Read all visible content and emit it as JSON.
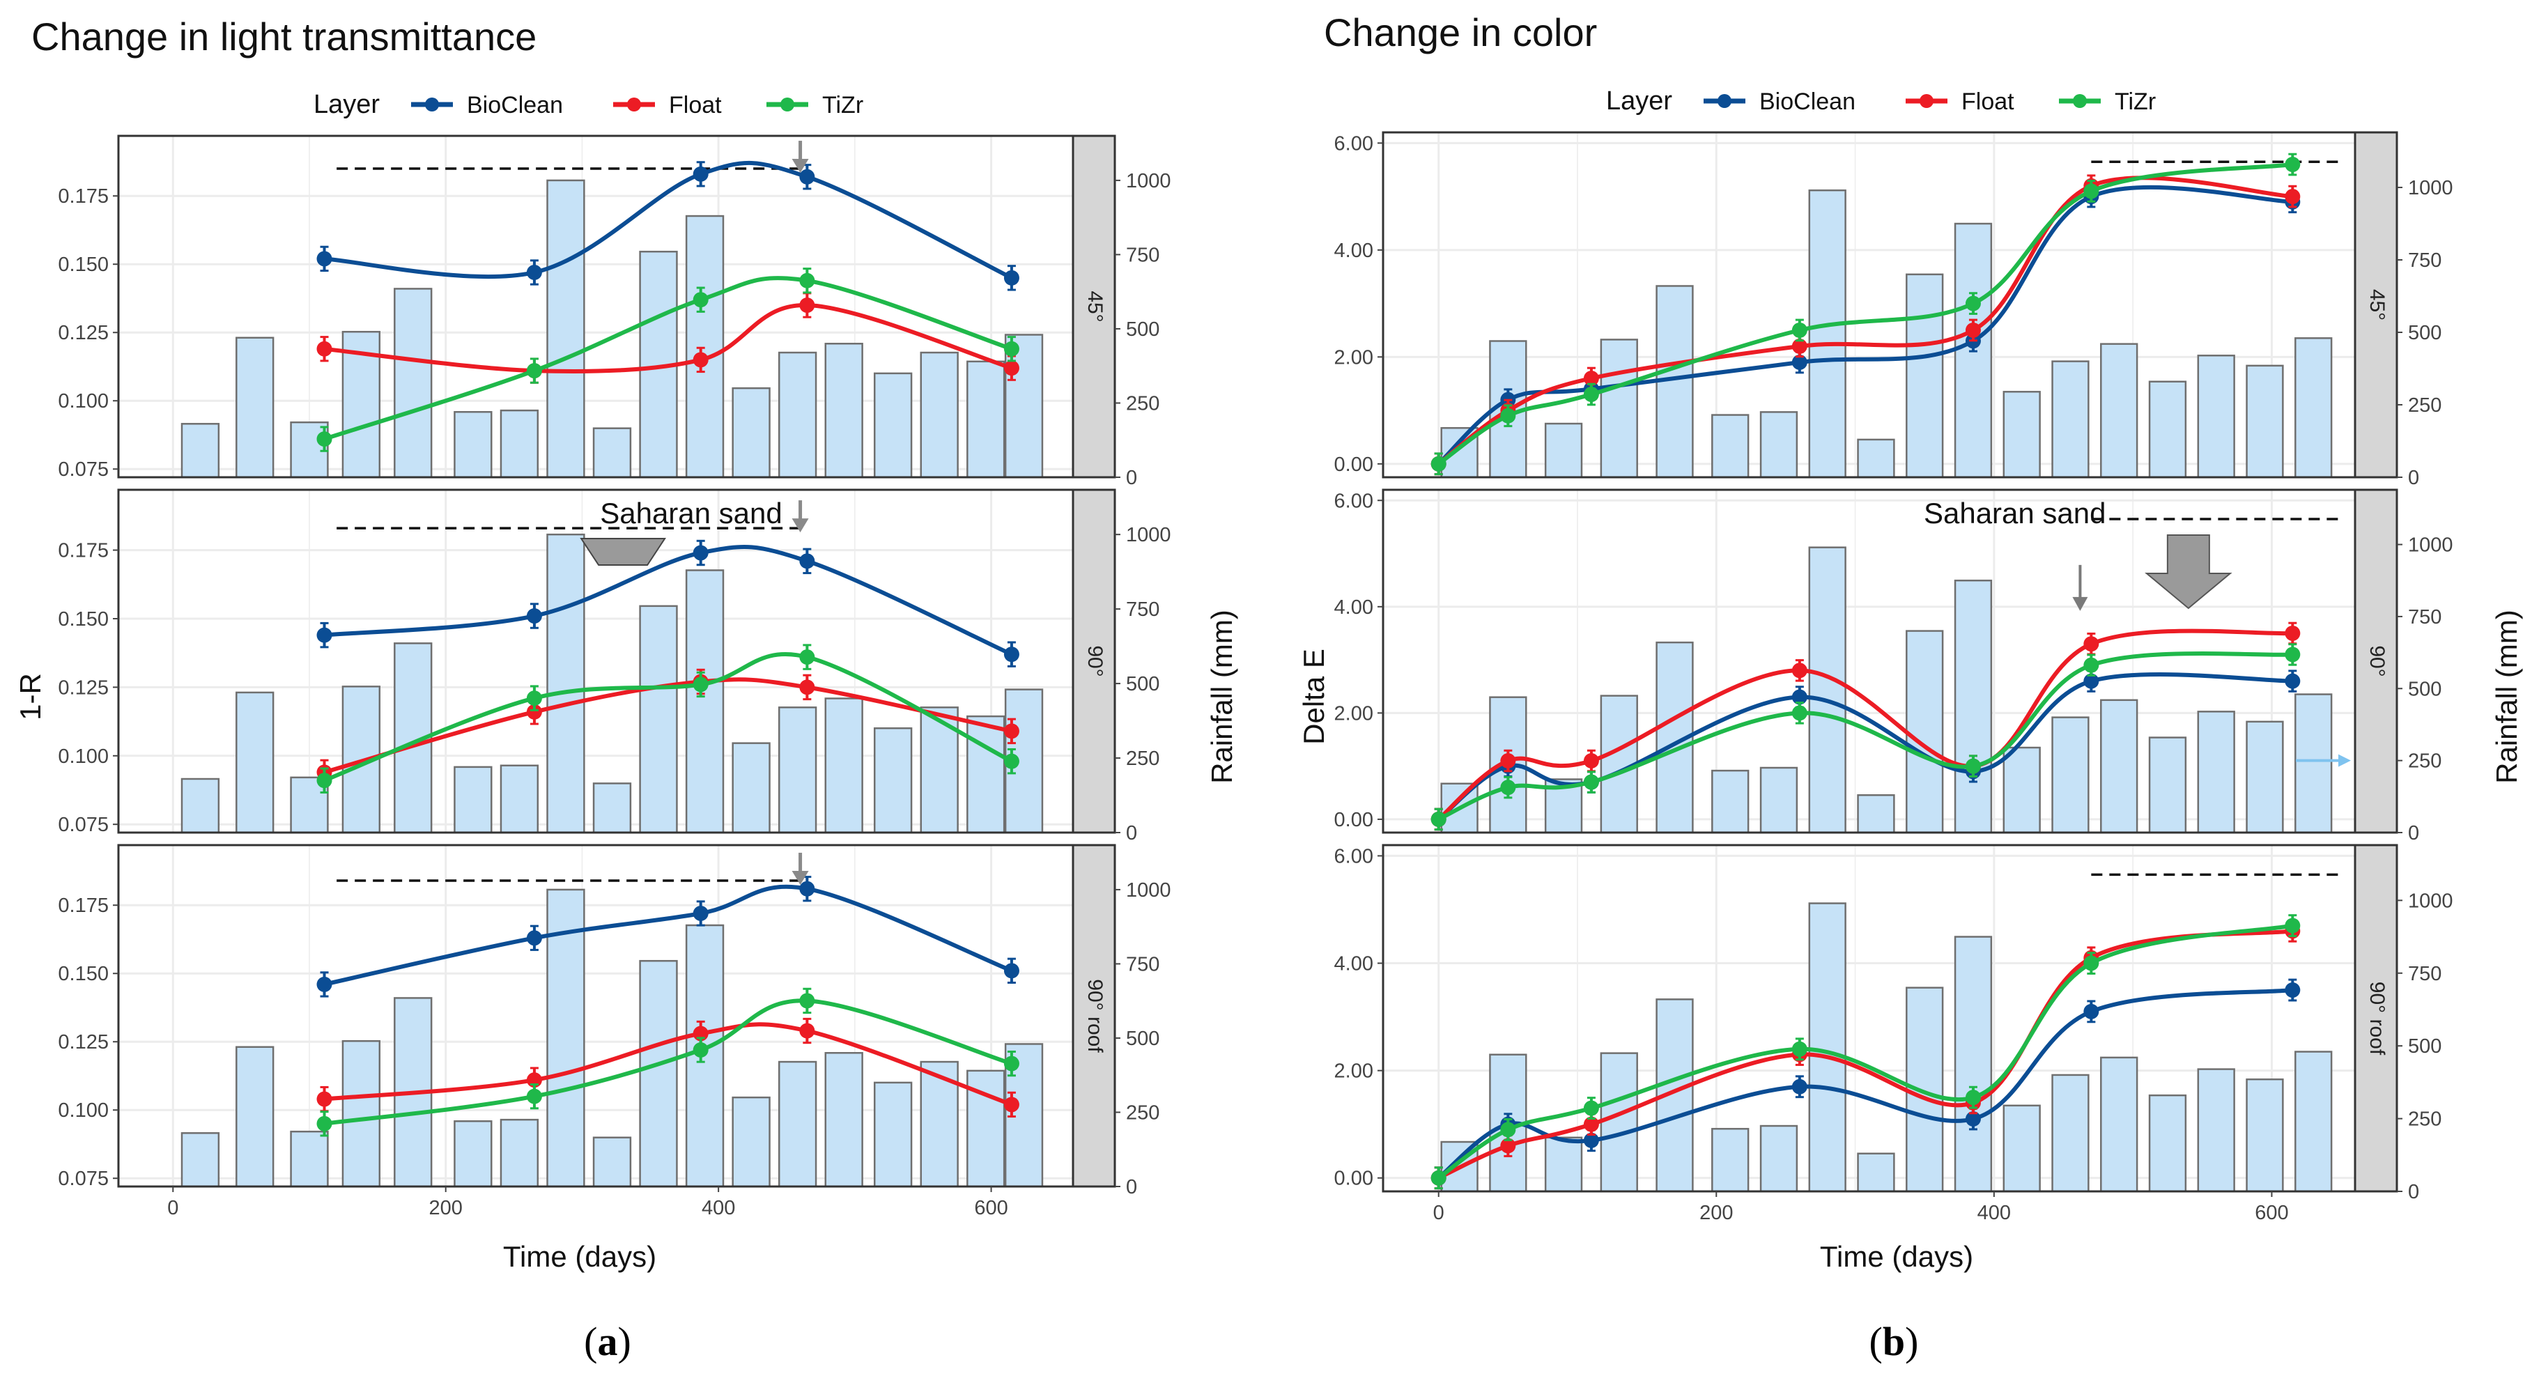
{
  "colors": {
    "BioClean": "#0b4d94",
    "Float": "#ec1c24",
    "TiZr": "#1fb84a",
    "bar_fill": "#c6e2f7",
    "bar_stroke": "#6f6f6f",
    "strip": "#d6d6d6",
    "grid": "#ececec"
  },
  "legend": {
    "title": "Layer",
    "items": [
      {
        "key": "BioClean",
        "label": "BioClean"
      },
      {
        "key": "Float",
        "label": "Float"
      },
      {
        "key": "TiZr",
        "label": "TiZr"
      }
    ]
  },
  "subfigure_labels": {
    "a": {
      "open": "(",
      "letter": "a",
      "close": ")"
    },
    "b": {
      "open": "(",
      "letter": "b",
      "close": ")"
    }
  },
  "annotations": {
    "saharan_sand": "Saharan sand",
    "arrow_icon": "down-arrow-icon"
  },
  "chart_data": [
    {
      "id": "a",
      "type": "line",
      "title": "Change in light transmittance",
      "xlabel": "Time (days)",
      "ylabel": "1-R",
      "y2label": "Rainfall (mm)",
      "xlim": [
        -40,
        660
      ],
      "xticks": [
        0,
        200,
        400,
        600
      ],
      "ylim": [
        0.072,
        0.197
      ],
      "yticks": [
        0.075,
        0.1,
        0.125,
        0.15,
        0.175
      ],
      "ytick_labels": [
        "0.075",
        "0.100",
        "0.125",
        "0.150",
        "0.175"
      ],
      "y2lim": [
        0,
        1150
      ],
      "y2ticks": [
        0,
        250,
        500,
        750,
        1000
      ],
      "y2tick_labels": [
        "0",
        "250",
        "500",
        "750",
        "1000"
      ],
      "rain_days": [
        20,
        60,
        100,
        138,
        176,
        220,
        254,
        288,
        322,
        356,
        390,
        424,
        458,
        492,
        528,
        562,
        596,
        624
      ],
      "panels": [
        {
          "facet": "45°",
          "rain": [
            180,
            470,
            185,
            490,
            635,
            220,
            225,
            1000,
            165,
            760,
            880,
            300,
            420,
            450,
            350,
            420,
            390,
            480
          ],
          "series": [
            {
              "name": "BioClean",
              "x": [
                111,
                265,
                387,
                465,
                615
              ],
              "y": [
                0.152,
                0.147,
                0.183,
                0.182,
                0.145
              ]
            },
            {
              "name": "Float",
              "x": [
                111,
                265,
                387,
                465,
                615
              ],
              "y": [
                0.119,
                0.111,
                0.115,
                0.135,
                0.112
              ]
            },
            {
              "name": "TiZr",
              "x": [
                111,
                265,
                387,
                465,
                615
              ],
              "y": [
                0.086,
                0.111,
                0.137,
                0.144,
                0.119
              ]
            }
          ],
          "dashed_line": {
            "x": [
              120,
              460
            ],
            "y": 0.185
          },
          "arrows": [
            {
              "x": 460,
              "y": 0.185
            }
          ],
          "saharan_label": false
        },
        {
          "facet": "90°",
          "rain": [
            180,
            470,
            185,
            490,
            635,
            220,
            225,
            1000,
            165,
            760,
            880,
            300,
            420,
            450,
            350,
            420,
            390,
            480
          ],
          "series": [
            {
              "name": "BioClean",
              "x": [
                111,
                265,
                387,
                465,
                615
              ],
              "y": [
                0.144,
                0.151,
                0.174,
                0.171,
                0.137
              ]
            },
            {
              "name": "Float",
              "x": [
                111,
                265,
                387,
                465,
                615
              ],
              "y": [
                0.094,
                0.116,
                0.127,
                0.125,
                0.109
              ]
            },
            {
              "name": "TiZr",
              "x": [
                111,
                265,
                387,
                465,
                615
              ],
              "y": [
                0.091,
                0.121,
                0.126,
                0.136,
                0.098
              ]
            }
          ],
          "dashed_line": {
            "x": [
              120,
              460
            ],
            "y": 0.183
          },
          "arrows": [
            {
              "x": 460,
              "y": 0.183
            }
          ],
          "big_arrow": {
            "x": 330
          },
          "saharan_label": true
        },
        {
          "facet": "90° roof",
          "rain": [
            180,
            470,
            185,
            490,
            635,
            220,
            225,
            1000,
            165,
            760,
            880,
            300,
            420,
            450,
            350,
            420,
            390,
            480
          ],
          "series": [
            {
              "name": "BioClean",
              "x": [
                111,
                265,
                387,
                465,
                615
              ],
              "y": [
                0.146,
                0.163,
                0.172,
                0.181,
                0.151
              ]
            },
            {
              "name": "Float",
              "x": [
                111,
                265,
                387,
                465,
                615
              ],
              "y": [
                0.104,
                0.111,
                0.128,
                0.129,
                0.102
              ]
            },
            {
              "name": "TiZr",
              "x": [
                111,
                265,
                387,
                465,
                615
              ],
              "y": [
                0.095,
                0.105,
                0.122,
                0.14,
                0.117
              ]
            }
          ],
          "dashed_line": {
            "x": [
              120,
              460
            ],
            "y": 0.184
          },
          "arrows": [
            {
              "x": 460,
              "y": 0.184
            }
          ],
          "saharan_label": false
        }
      ]
    },
    {
      "id": "b",
      "type": "line",
      "title": "Change in color",
      "xlabel": "Time (days)",
      "ylabel": "Delta E",
      "y2label": "Rainfall (mm)",
      "xlim": [
        -40,
        660
      ],
      "xticks": [
        0,
        200,
        400,
        600
      ],
      "ylim": [
        -0.25,
        6.2
      ],
      "yticks": [
        0,
        2,
        4,
        6
      ],
      "ytick_labels": [
        "0.00",
        "2.00",
        "4.00",
        "6.00"
      ],
      "y2lim": [
        0,
        1190
      ],
      "y2ticks": [
        0,
        250,
        500,
        750,
        1000
      ],
      "y2tick_labels": [
        "0",
        "250",
        "500",
        "750",
        "1000"
      ],
      "rain_days": [
        15,
        50,
        90,
        130,
        170,
        210,
        245,
        280,
        315,
        350,
        385,
        420,
        455,
        490,
        525,
        560,
        595,
        630
      ],
      "panels": [
        {
          "facet": "45°",
          "rain": [
            170,
            470,
            185,
            475,
            660,
            215,
            225,
            990,
            130,
            700,
            875,
            295,
            400,
            460,
            330,
            420,
            385,
            480
          ],
          "series": [
            {
              "name": "BioClean",
              "x": [
                0,
                50,
                110,
                260,
                385,
                470,
                615
              ],
              "y": [
                0.0,
                1.2,
                1.4,
                1.9,
                2.3,
                5.0,
                4.9
              ]
            },
            {
              "name": "Float",
              "x": [
                0,
                50,
                110,
                260,
                385,
                470,
                615
              ],
              "y": [
                0.0,
                1.0,
                1.6,
                2.2,
                2.5,
                5.2,
                5.0
              ]
            },
            {
              "name": "TiZr",
              "x": [
                0,
                50,
                110,
                260,
                385,
                470,
                615
              ],
              "y": [
                0.0,
                0.9,
                1.3,
                2.5,
                3.0,
                5.1,
                5.6
              ]
            }
          ],
          "dashed_line": {
            "x": [
              470,
              650
            ],
            "y": 5.65
          },
          "arrows": [],
          "saharan_label": false
        },
        {
          "facet": "90°",
          "rain": [
            170,
            470,
            185,
            475,
            660,
            215,
            225,
            990,
            130,
            700,
            875,
            295,
            400,
            460,
            330,
            420,
            385,
            480
          ],
          "series": [
            {
              "name": "BioClean",
              "x": [
                0,
                50,
                110,
                260,
                385,
                470,
                615
              ],
              "y": [
                0.0,
                1.0,
                0.7,
                2.3,
                0.9,
                2.6,
                2.6
              ]
            },
            {
              "name": "Float",
              "x": [
                0,
                50,
                110,
                260,
                385,
                470,
                615
              ],
              "y": [
                0.0,
                1.1,
                1.1,
                2.8,
                1.0,
                3.3,
                3.5
              ]
            },
            {
              "name": "TiZr",
              "x": [
                0,
                50,
                110,
                260,
                385,
                470,
                615
              ],
              "y": [
                0.0,
                0.6,
                0.7,
                2.0,
                1.0,
                2.9,
                3.1
              ]
            }
          ],
          "dashed_line": {
            "x": [
              470,
              650
            ],
            "y": 5.65
          },
          "arrows": [
            {
              "x": 462,
              "y": 4.0
            }
          ],
          "big_arrow": {
            "x": 540
          },
          "saharan_label": true,
          "side_arrow": true
        },
        {
          "facet": "90° roof",
          "rain": [
            170,
            470,
            185,
            475,
            660,
            215,
            225,
            990,
            130,
            700,
            875,
            295,
            400,
            460,
            330,
            420,
            385,
            480
          ],
          "series": [
            {
              "name": "BioClean",
              "x": [
                0,
                50,
                110,
                260,
                385,
                470,
                615
              ],
              "y": [
                0.0,
                1.0,
                0.7,
                1.7,
                1.1,
                3.1,
                3.5
              ]
            },
            {
              "name": "Float",
              "x": [
                0,
                50,
                110,
                260,
                385,
                470,
                615
              ],
              "y": [
                0.0,
                0.6,
                1.0,
                2.3,
                1.4,
                4.1,
                4.6
              ]
            },
            {
              "name": "TiZr",
              "x": [
                0,
                50,
                110,
                260,
                385,
                470,
                615
              ],
              "y": [
                0.0,
                0.9,
                1.3,
                2.4,
                1.5,
                4.0,
                4.7
              ]
            }
          ],
          "dashed_line": {
            "x": [
              470,
              650
            ],
            "y": 5.65
          },
          "arrows": [],
          "saharan_label": false
        }
      ]
    }
  ]
}
